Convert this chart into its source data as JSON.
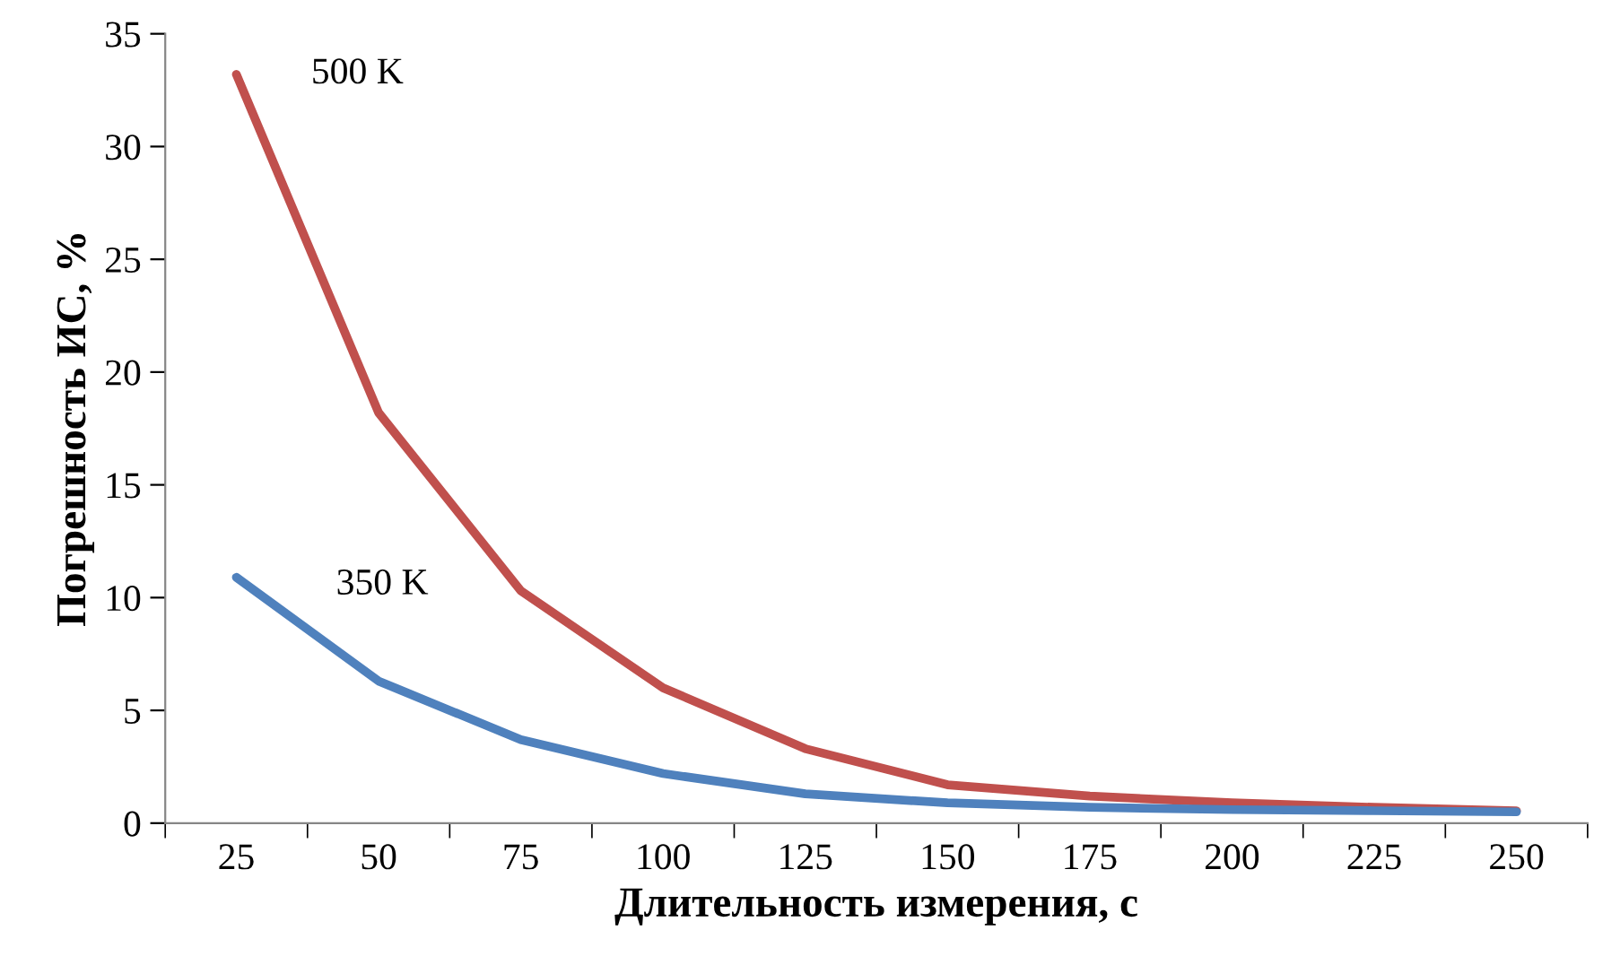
{
  "chart_data": {
    "type": "line",
    "xlabel": "Длительность измерения, с",
    "ylabel": "Погрешность ИС, %",
    "categories": [
      "25",
      "50",
      "75",
      "100",
      "125",
      "150",
      "175",
      "200",
      "225",
      "250"
    ],
    "series": [
      {
        "name": "500 K",
        "color": "#c0504d",
        "values": [
          33.2,
          18.2,
          10.3,
          6.0,
          3.3,
          1.7,
          1.2,
          0.9,
          0.7,
          0.55
        ]
      },
      {
        "name": "350 K",
        "color": "#4f81bd",
        "values": [
          10.9,
          6.3,
          3.7,
          2.2,
          1.3,
          0.9,
          0.7,
          0.6,
          0.55,
          0.5
        ]
      }
    ],
    "ylim": [
      0,
      35
    ],
    "yticks": [
      0,
      5,
      10,
      15,
      20,
      25,
      30,
      35
    ],
    "grid": false,
    "legend": false,
    "marker": "none",
    "line_style": "solid"
  }
}
